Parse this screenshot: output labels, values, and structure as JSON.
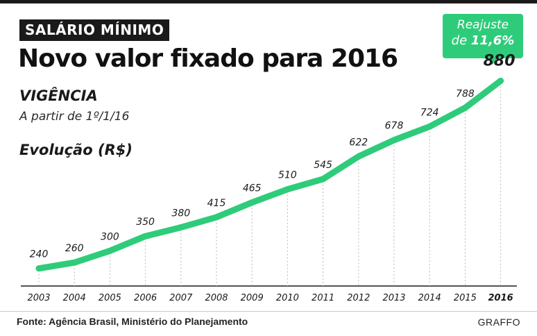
{
  "header": {
    "section_tag": "SALÁRIO MÍNIMO",
    "headline": "Novo valor fixado para 2016"
  },
  "vigencia": {
    "title": "VIGÊNCIA",
    "date": "A partir de 1º/1/16"
  },
  "badge": {
    "line1": "Reajuste",
    "line2_prefix": "de ",
    "line2_value": "11,6%"
  },
  "colors": {
    "accent": "#2ecc7a",
    "dark": "#1a1a1a"
  },
  "chart_data": {
    "type": "line",
    "title": "Evolução (R$)",
    "x": [
      "2003",
      "2004",
      "2005",
      "2006",
      "2007",
      "2008",
      "2009",
      "2010",
      "2011",
      "2012",
      "2013",
      "2014",
      "2015",
      "2016"
    ],
    "values": [
      240,
      260,
      300,
      350,
      380,
      415,
      465,
      510,
      545,
      622,
      678,
      724,
      788,
      880
    ],
    "data_labels": [
      "240",
      "260",
      "300",
      "350",
      "380",
      "415",
      "465",
      "510",
      "545",
      "622",
      "678",
      "724",
      "788",
      "880"
    ],
    "highlight": "2016",
    "ylim": [
      200,
      900
    ],
    "grid": "vertical dashed"
  },
  "footer": {
    "source": "Fonte: Agência Brasil, Ministério do Planejamento",
    "credit": "GRAFFO"
  }
}
